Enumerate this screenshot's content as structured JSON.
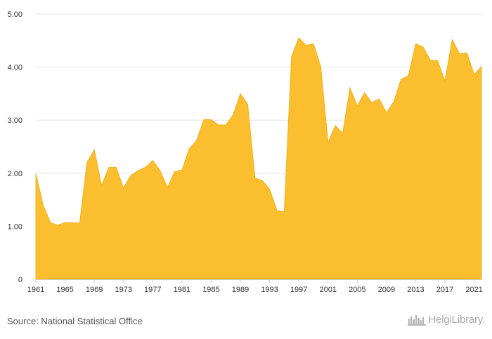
{
  "source": "Source: National Statistical Office",
  "logo": {
    "text": "HelgiLibrary.",
    "icon": "factory-skyline-icon"
  },
  "colors": {
    "area": "#fbbe2e",
    "stroke": "#f2b21e",
    "grid": "#e6e6e6",
    "axis": "#cccccc"
  },
  "chart_data": {
    "type": "area",
    "title": "",
    "xlabel": "",
    "ylabel": "",
    "ylim": [
      0,
      5
    ],
    "xlim": [
      1961,
      2022
    ],
    "y_ticks": [
      {
        "v": 0,
        "label": "0"
      },
      {
        "v": 1,
        "label": "1.00"
      },
      {
        "v": 2,
        "label": "2.00"
      },
      {
        "v": 3,
        "label": "3.00"
      },
      {
        "v": 4,
        "label": "4.00"
      },
      {
        "v": 5,
        "label": "5.00"
      }
    ],
    "x_ticks": [
      1961,
      1965,
      1969,
      1973,
      1977,
      1981,
      1985,
      1989,
      1993,
      1997,
      2001,
      2005,
      2009,
      2013,
      2017,
      2021
    ],
    "grid": "horizontal",
    "x": [
      1961,
      1962,
      1963,
      1964,
      1965,
      1966,
      1967,
      1968,
      1969,
      1970,
      1971,
      1972,
      1973,
      1974,
      1975,
      1976,
      1977,
      1978,
      1979,
      1980,
      1981,
      1982,
      1983,
      1984,
      1985,
      1986,
      1987,
      1988,
      1989,
      1990,
      1991,
      1992,
      1993,
      1994,
      1995,
      1996,
      1997,
      1998,
      1999,
      2000,
      2001,
      2002,
      2003,
      2004,
      2005,
      2006,
      2007,
      2008,
      2009,
      2010,
      2011,
      2012,
      2013,
      2014,
      2015,
      2016,
      2017,
      2018,
      2019,
      2020,
      2021,
      2022
    ],
    "values": [
      1.99,
      1.4,
      1.07,
      1.02,
      1.07,
      1.07,
      1.06,
      2.2,
      2.44,
      1.77,
      2.11,
      2.11,
      1.72,
      1.96,
      2.05,
      2.11,
      2.24,
      2.05,
      1.73,
      2.03,
      2.06,
      2.46,
      2.62,
      3.01,
      3.01,
      2.91,
      2.91,
      3.1,
      3.5,
      3.3,
      1.91,
      1.86,
      1.7,
      1.3,
      1.27,
      4.2,
      4.55,
      4.41,
      4.44,
      4.01,
      2.58,
      2.9,
      2.75,
      3.61,
      3.27,
      3.52,
      3.33,
      3.4,
      3.14,
      3.35,
      3.77,
      3.84,
      4.44,
      4.38,
      4.13,
      4.12,
      3.74,
      4.52,
      4.25,
      4.27,
      3.86,
      4.01
    ]
  }
}
